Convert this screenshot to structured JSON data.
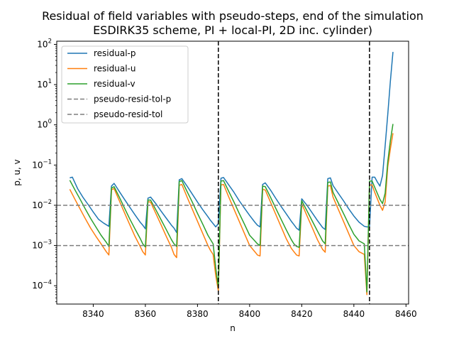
{
  "chart_data": {
    "type": "line",
    "title": "Residual of field variables with pseudo-steps, end of the simulation",
    "subtitle": "ESDIRK35 scheme, PI + local-PI, 2D inc. cylinder)",
    "xlabel": "n",
    "ylabel": "p, u, v",
    "yscale": "log",
    "xlim": [
      8326,
      8461
    ],
    "ylim": [
      3.5e-05,
      120
    ],
    "x_ticks": [
      8340,
      8360,
      8380,
      8400,
      8420,
      8440,
      8460
    ],
    "x_tick_labels": [
      "8340",
      "8360",
      "8380",
      "8400",
      "8420",
      "8440",
      "8460"
    ],
    "y_ticks": [
      0.0001,
      0.001,
      0.01,
      0.1,
      1,
      10,
      100
    ],
    "y_tick_labels": [
      {
        "base": "10",
        "exp": "−4"
      },
      {
        "base": "10",
        "exp": "−3"
      },
      {
        "base": "10",
        "exp": "−2"
      },
      {
        "base": "10",
        "exp": "−1"
      },
      {
        "base": "10",
        "exp": "0"
      },
      {
        "base": "10",
        "exp": "1"
      },
      {
        "base": "10",
        "exp": "2"
      }
    ],
    "grid": false,
    "legend_placement": "top-left",
    "series": [
      {
        "name": "residual-p",
        "color": "#1f77b4",
        "style": "solid",
        "x": [
          8331,
          8332,
          8333,
          8334,
          8336,
          8338,
          8340,
          8342,
          8344,
          8346,
          8347,
          8348,
          8350,
          8352,
          8354,
          8356,
          8358,
          8359,
          8360,
          8361,
          8362,
          8364,
          8366,
          8368,
          8370,
          8371,
          8372,
          8373,
          8374,
          8376,
          8378,
          8380,
          8382,
          8384,
          8385,
          8386,
          8387,
          8388,
          8389,
          8390,
          8392,
          8394,
          8396,
          8398,
          8400,
          8402,
          8403,
          8404,
          8405,
          8406,
          8408,
          8410,
          8412,
          8414,
          8416,
          8417,
          8418,
          8419,
          8420,
          8422,
          8424,
          8426,
          8428,
          8429,
          8430,
          8431,
          8432,
          8434,
          8436,
          8438,
          8440,
          8442,
          8444,
          8445,
          8446,
          8447,
          8448,
          8449,
          8450,
          8451,
          8452,
          8453,
          8454,
          8455
        ],
        "y": [
          0.048,
          0.05,
          0.036,
          0.026,
          0.016,
          0.0105,
          0.0068,
          0.0045,
          0.0036,
          0.003,
          0.03,
          0.035,
          0.022,
          0.014,
          0.009,
          0.0058,
          0.0038,
          0.0032,
          0.0026,
          0.015,
          0.016,
          0.011,
          0.0072,
          0.0048,
          0.0032,
          0.0027,
          0.0021,
          0.043,
          0.046,
          0.03,
          0.019,
          0.012,
          0.0078,
          0.0052,
          0.0042,
          0.0035,
          0.0029,
          0.0035,
          0.047,
          0.049,
          0.032,
          0.021,
          0.013,
          0.0085,
          0.0056,
          0.0038,
          0.0032,
          0.0029,
          0.033,
          0.036,
          0.024,
          0.015,
          0.0095,
          0.0062,
          0.004,
          0.0033,
          0.0027,
          0.0024,
          0.0145,
          0.01,
          0.0065,
          0.0042,
          0.0028,
          0.0025,
          0.046,
          0.048,
          0.031,
          0.02,
          0.013,
          0.0082,
          0.0054,
          0.0038,
          0.003,
          0.0029,
          0.0029,
          0.05,
          0.05,
          0.038,
          0.03,
          0.055,
          0.3,
          1.8,
          12,
          65
        ]
      },
      {
        "name": "residual-u",
        "color": "#ff7f0e",
        "style": "solid",
        "x": [
          8331,
          8333,
          8335,
          8337,
          8339,
          8341,
          8343,
          8345,
          8346,
          8347,
          8348,
          8350,
          8352,
          8354,
          8356,
          8358,
          8359,
          8360,
          8361,
          8362,
          8364,
          8366,
          8368,
          8370,
          8371,
          8372,
          8373,
          8374,
          8376,
          8378,
          8380,
          8382,
          8384,
          8385,
          8386,
          8387,
          8388,
          8389,
          8390,
          8392,
          8394,
          8396,
          8398,
          8400,
          8402,
          8403,
          8404,
          8405,
          8406,
          8408,
          8410,
          8412,
          8414,
          8416,
          8417,
          8418,
          8419,
          8420,
          8422,
          8424,
          8426,
          8428,
          8429,
          8430,
          8431,
          8432,
          8434,
          8436,
          8438,
          8440,
          8442,
          8444,
          8445,
          8446,
          8447,
          8448,
          8450,
          8451,
          8452,
          8453,
          8454,
          8455
        ],
        "y": [
          0.025,
          0.014,
          0.008,
          0.0046,
          0.0027,
          0.0017,
          0.0011,
          0.0007,
          0.00058,
          0.0245,
          0.026,
          0.013,
          0.0065,
          0.0033,
          0.0017,
          0.00095,
          0.0007,
          0.00058,
          0.0123,
          0.012,
          0.0063,
          0.0033,
          0.0017,
          0.0009,
          0.0006,
          0.0005,
          0.0312,
          0.033,
          0.016,
          0.008,
          0.004,
          0.002,
          0.001,
          0.00075,
          0.0006,
          0.00018,
          7.5e-05,
          0.032,
          0.033,
          0.016,
          0.008,
          0.004,
          0.002,
          0.001,
          0.0007,
          0.00058,
          0.00055,
          0.025,
          0.024,
          0.012,
          0.006,
          0.003,
          0.0015,
          0.00085,
          0.0007,
          0.00058,
          0.00055,
          0.011,
          0.0055,
          0.0028,
          0.0014,
          0.0008,
          0.00068,
          0.03,
          0.031,
          0.016,
          0.008,
          0.004,
          0.002,
          0.001,
          0.0007,
          0.0006,
          6e-05,
          0.032,
          0.032,
          0.021,
          0.01,
          0.0075,
          0.012,
          0.09,
          0.25,
          0.62
        ]
      },
      {
        "name": "residual-v",
        "color": "#2ca02c",
        "style": "solid",
        "x": [
          8331,
          8333,
          8335,
          8337,
          8339,
          8341,
          8343,
          8345,
          8346,
          8347,
          8348,
          8350,
          8352,
          8354,
          8356,
          8358,
          8359,
          8360,
          8361,
          8362,
          8364,
          8366,
          8368,
          8370,
          8371,
          8372,
          8373,
          8374,
          8376,
          8378,
          8380,
          8382,
          8384,
          8385,
          8386,
          8387,
          8388,
          8389,
          8390,
          8392,
          8394,
          8396,
          8398,
          8400,
          8402,
          8403,
          8404,
          8405,
          8406,
          8408,
          8410,
          8412,
          8414,
          8416,
          8417,
          8418,
          8419,
          8420,
          8422,
          8424,
          8426,
          8428,
          8429,
          8430,
          8431,
          8432,
          8434,
          8436,
          8438,
          8440,
          8442,
          8444,
          8445,
          8446,
          8447,
          8448,
          8450,
          8451,
          8452,
          8453,
          8454,
          8455
        ],
        "y": [
          0.042,
          0.024,
          0.014,
          0.008,
          0.0047,
          0.0029,
          0.0018,
          0.0012,
          0.00095,
          0.027,
          0.029,
          0.016,
          0.0085,
          0.0046,
          0.0026,
          0.0015,
          0.0011,
          0.00092,
          0.0135,
          0.0135,
          0.0078,
          0.0044,
          0.0025,
          0.0014,
          0.0011,
          0.00095,
          0.039,
          0.041,
          0.022,
          0.012,
          0.0063,
          0.0034,
          0.0018,
          0.0014,
          0.0011,
          0.00028,
          9e-05,
          0.04,
          0.041,
          0.022,
          0.012,
          0.0063,
          0.0034,
          0.0018,
          0.0013,
          0.0011,
          0.001,
          0.03,
          0.029,
          0.016,
          0.0085,
          0.0046,
          0.0025,
          0.0014,
          0.0011,
          0.00095,
          0.0009,
          0.013,
          0.0073,
          0.0041,
          0.0023,
          0.0013,
          0.0011,
          0.037,
          0.038,
          0.021,
          0.0115,
          0.0063,
          0.0034,
          0.0019,
          0.0013,
          0.0011,
          7e-05,
          0.04,
          0.04,
          0.028,
          0.014,
          0.011,
          0.02,
          0.12,
          0.4,
          1.05
        ]
      },
      {
        "name": "pseudo-resid-tol-p",
        "color": "#7f7f7f",
        "style": "dashed",
        "y_const": 0.01
      },
      {
        "name": "pseudo-resid-tol",
        "color": "#7f7f7f",
        "style": "dashed",
        "y_const": 0.001
      }
    ],
    "vertical_markers": [
      {
        "x": 8388,
        "color": "#000000",
        "style": "dashed"
      },
      {
        "x": 8446,
        "color": "#000000",
        "style": "dashed"
      }
    ]
  }
}
